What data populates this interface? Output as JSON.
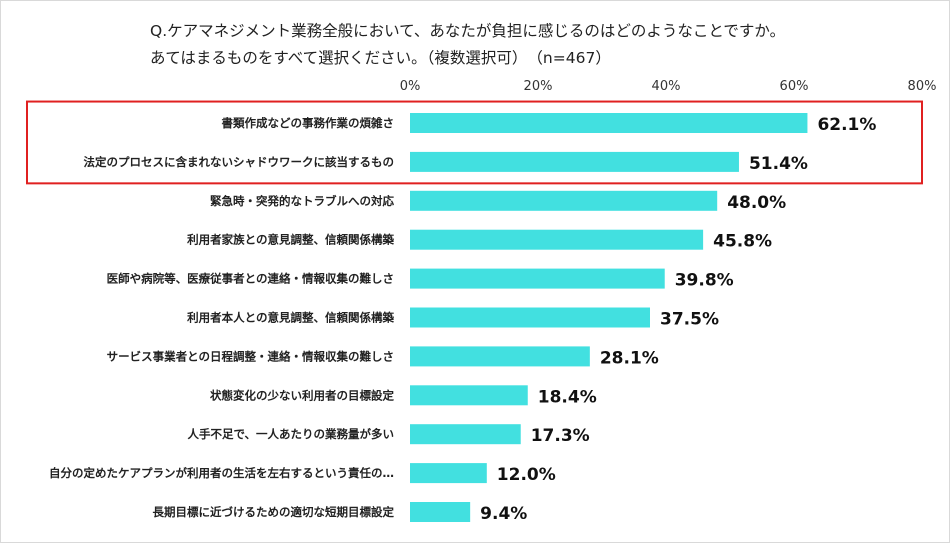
{
  "title": {
    "line1": "Q.ケアマネジメント業務全般において、あなたが負担に感じるのはどのようなことですか。",
    "line2": "あてはまるものをすべて選択ください。（複数選択可）　（n=467）"
  },
  "colors": {
    "bar": "#42e0e0",
    "highlight_box": "#e02020"
  },
  "chart_data": {
    "type": "bar",
    "orientation": "horizontal",
    "xlim": [
      0,
      80
    ],
    "ticks": [
      "0%",
      "20%",
      "40%",
      "60%",
      "80%"
    ],
    "tick_values": [
      0,
      20,
      40,
      60,
      80
    ],
    "grid": false,
    "categories": [
      "書類作成などの事務作業の煩雑さ",
      "法定のプロセスに含まれないシャドウワークに該当するもの",
      "緊急時・突発的なトラブルへの対応",
      "利用者家族との意見調整、信頼関係構築",
      "医師や病院等、医療従事者との連絡・情報収集の難しさ",
      "利用者本人との意見調整、信頼関係構築",
      "サービス事業者との日程調整・連絡・情報収集の難しさ",
      "状態変化の少ない利用者の目標設定",
      "人手不足で、一人あたりの業務量が多い",
      "自分の定めたケアプランが利用者の生活を左右するという責任の…",
      "長期目標に近づけるための適切な短期目標設定"
    ],
    "values": [
      62.1,
      51.4,
      48.0,
      45.8,
      39.8,
      37.5,
      28.1,
      18.4,
      17.3,
      12.0,
      9.4
    ],
    "value_labels": [
      "62.1%",
      "51.4%",
      "48.0%",
      "45.8%",
      "39.8%",
      "37.5%",
      "28.1%",
      "18.4%",
      "17.3%",
      "12.0%",
      "9.4%"
    ],
    "highlighted_categories": [
      0,
      1
    ]
  }
}
